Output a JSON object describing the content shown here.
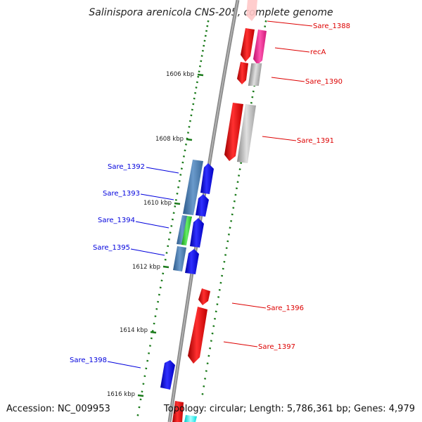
{
  "title": "Salinispora arenicola CNS-205, complete genome",
  "accession": "Accession: NC_009953",
  "topology": "Topology: circular; Length: 5,786,361 bp; Genes: 4,979",
  "colors": {
    "forward": "#ee0000",
    "reverse": "#0000ee",
    "steel": "#4a78a8",
    "grey": "#b0b0b0",
    "pink": "#ff2d9a",
    "green": "#33cc33",
    "cyan": "#00ffff",
    "tick": "#1a7a1a",
    "backbone": "#8a8a8a"
  },
  "ticks": [
    {
      "label": "1606 kbp"
    },
    {
      "label": "1608 kbp"
    },
    {
      "label": "1610 kbp"
    },
    {
      "label": "1612 kbp"
    },
    {
      "label": "1614 kbp"
    },
    {
      "label": "1616 kbp"
    }
  ],
  "gene_labels": [
    {
      "name": "Sare_1388",
      "strand": "forward"
    },
    {
      "name": "recA",
      "strand": "forward"
    },
    {
      "name": "Sare_1390",
      "strand": "forward"
    },
    {
      "name": "Sare_1391",
      "strand": "forward"
    },
    {
      "name": "Sare_1396",
      "strand": "forward"
    },
    {
      "name": "Sare_1397",
      "strand": "forward"
    },
    {
      "name": "Sare_1392",
      "strand": "reverse"
    },
    {
      "name": "Sare_1393",
      "strand": "reverse"
    },
    {
      "name": "Sare_1394",
      "strand": "reverse"
    },
    {
      "name": "Sare_1395",
      "strand": "reverse"
    },
    {
      "name": "Sare_1398",
      "strand": "reverse"
    }
  ]
}
